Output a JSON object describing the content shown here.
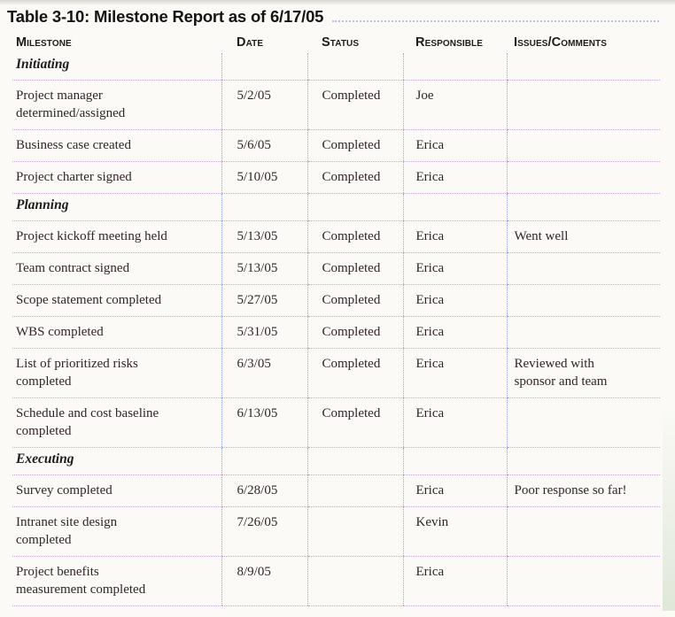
{
  "page": {
    "title": "Table 3-10: Milestone Report as of 6/17/05"
  },
  "table": {
    "columns": [
      "Milestone",
      "Date",
      "Status",
      "Responsible",
      "Issues/Comments"
    ],
    "rows": [
      {
        "type": "section",
        "label": "Initiating"
      },
      {
        "type": "data",
        "milestone": "Project manager\ndetermined/assigned",
        "date": "5/2/05",
        "status": "Completed",
        "responsible": "Joe",
        "comments": ""
      },
      {
        "type": "data",
        "milestone": "Business case created",
        "date": "5/6/05",
        "status": "Completed",
        "responsible": "Erica",
        "comments": ""
      },
      {
        "type": "data",
        "milestone": "Project charter signed",
        "date": "5/10/05",
        "status": "Completed",
        "responsible": "Erica",
        "comments": ""
      },
      {
        "type": "section",
        "label": "Planning"
      },
      {
        "type": "data",
        "milestone": "Project kickoff meeting held",
        "date": "5/13/05",
        "status": "Completed",
        "responsible": "Erica",
        "comments": "Went well"
      },
      {
        "type": "data",
        "milestone": "Team contract signed",
        "date": "5/13/05",
        "status": "Completed",
        "responsible": "Erica",
        "comments": ""
      },
      {
        "type": "data",
        "milestone": "Scope statement completed",
        "date": "5/27/05",
        "status": "Completed",
        "responsible": "Erica",
        "comments": ""
      },
      {
        "type": "data",
        "milestone": "WBS completed",
        "date": "5/31/05",
        "status": "Completed",
        "responsible": "Erica",
        "comments": ""
      },
      {
        "type": "data",
        "milestone": "List of prioritized risks\ncompleted",
        "date": "6/3/05",
        "status": "Completed",
        "responsible": "Erica",
        "comments": "Reviewed with\nsponsor and team"
      },
      {
        "type": "data",
        "milestone": "Schedule and cost baseline\ncompleted",
        "date": "6/13/05",
        "status": "Completed",
        "responsible": "Erica",
        "comments": ""
      },
      {
        "type": "section",
        "label": "Executing"
      },
      {
        "type": "data",
        "milestone": "Survey completed",
        "date": "6/28/05",
        "status": "",
        "responsible": "Erica",
        "comments": "Poor response so far!"
      },
      {
        "type": "data",
        "milestone": "Intranet site design\ncompleted",
        "date": "7/26/05",
        "status": "",
        "responsible": "Kevin",
        "comments": ""
      },
      {
        "type": "data",
        "milestone": "Project benefits\nmeasurement completed",
        "date": "8/9/05",
        "status": "",
        "responsible": "Erica",
        "comments": ""
      }
    ]
  },
  "colors": {
    "horizontal_rule": "#c2a8cd",
    "vertical_rule": "#98a6d6",
    "title_underline": "#b7c2e0",
    "body_text": "#32242a",
    "heading_text": "#161313",
    "background": "#fbfaf6"
  }
}
